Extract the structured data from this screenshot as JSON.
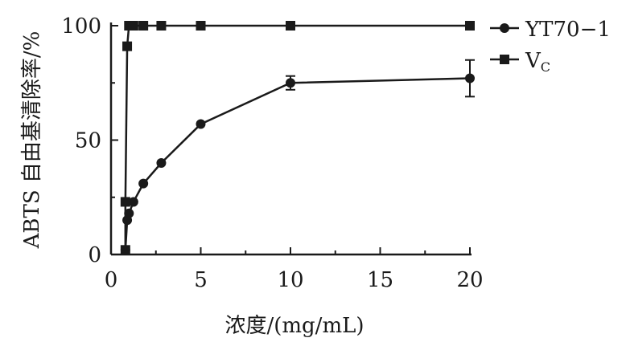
{
  "chart_data": {
    "type": "line",
    "xlabel": "浓度/(mg/mL)",
    "ylabel": "ABTS 自由基清除率/%",
    "xlim": [
      0,
      20
    ],
    "ylim": [
      0,
      100
    ],
    "xticks": [
      "0",
      "5",
      "10",
      "15",
      "20"
    ],
    "yticks": [
      "0",
      "50",
      "100"
    ],
    "grid": false,
    "legend_position": "top-right",
    "series": [
      {
        "name": "YT70−1",
        "marker": "circle",
        "x": [
          0.8,
          0.9,
          1.0,
          1.25,
          1.8,
          2.8,
          5.0,
          10.0,
          20.0
        ],
        "y": [
          2,
          15,
          18,
          23,
          31,
          40,
          57,
          75,
          77
        ],
        "error": [
          0,
          0,
          0,
          0,
          0,
          0,
          0,
          3,
          8
        ]
      },
      {
        "name": "VC",
        "name_main": "V",
        "name_sub": "C",
        "marker": "square",
        "x": [
          0.8,
          0.8,
          0.9,
          1.0,
          1.25,
          1.8,
          2.8,
          5.0,
          10.0,
          20.0
        ],
        "y": [
          2,
          23,
          91,
          100,
          100,
          100,
          100,
          100,
          100,
          100
        ],
        "error": [
          0,
          0,
          0,
          0,
          0,
          0,
          0,
          0,
          0,
          0
        ]
      }
    ]
  }
}
